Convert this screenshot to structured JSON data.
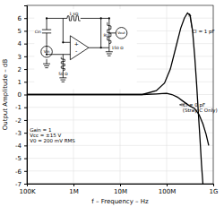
{
  "chart_data": {
    "type": "line",
    "xlabel": "f – Frequency – Hz",
    "ylabel": "Output Amplitude – dB",
    "log": "x",
    "grid": true,
    "xlim": [
      100000,
      1000000000
    ],
    "xticks": [
      {
        "value": 100000,
        "label": "100K"
      },
      {
        "value": 1000000,
        "label": "1M"
      },
      {
        "value": 10000000,
        "label": "10M"
      },
      {
        "value": 100000000,
        "label": "100M"
      },
      {
        "value": 1000000000,
        "label": "1G"
      }
    ],
    "ylim": [
      -7,
      7
    ],
    "yticks": [
      -7,
      -6,
      -5,
      -4,
      -3,
      -2,
      -1,
      0,
      1,
      2,
      3,
      4,
      5,
      6
    ],
    "series": [
      {
        "color": "#000000",
        "x": [
          100000,
          300000,
          1000000,
          5000000,
          10000000,
          30000000,
          60000000,
          80000000,
          100000000,
          130000000,
          170000000,
          220000000,
          300000000,
          400000000,
          500000000,
          600000000,
          700000000,
          800000000
        ],
        "values": [
          0.0,
          0.0,
          0.0,
          0.0,
          0.0,
          0.0,
          0.05,
          0.08,
          0.1,
          0.0,
          -0.2,
          -0.5,
          -0.85,
          -1.1,
          -1.6,
          -2.3,
          -3.1,
          -4.0
        ]
      },
      {
        "color": "#000000",
        "x": [
          100000,
          1000000,
          5000000,
          10000000,
          30000000,
          60000000,
          90000000,
          120000000,
          160000000,
          200000000,
          240000000,
          280000000,
          320000000,
          360000000,
          400000000,
          440000000,
          480000000,
          520000000,
          560000000,
          600000000
        ],
        "values": [
          0.0,
          0.0,
          0.0,
          0.0,
          0.0,
          0.3,
          0.9,
          2.0,
          3.8,
          5.2,
          6.0,
          6.4,
          6.2,
          5.0,
          3.0,
          0.8,
          -1.5,
          -3.5,
          -5.5,
          -7.0
        ]
      }
    ],
    "annotations": [
      "Gain = 1\nVcc = ±15 V\nV0 = 200 mV RMS",
      "Cl = 0 pF\n(Stray C Only)",
      "Cl = 1 pF",
      "Vin",
      "Cin",
      "1 kΩ",
      "+",
      "-",
      "50 Ω",
      "RL",
      "150 Ω",
      "Vout"
    ]
  }
}
